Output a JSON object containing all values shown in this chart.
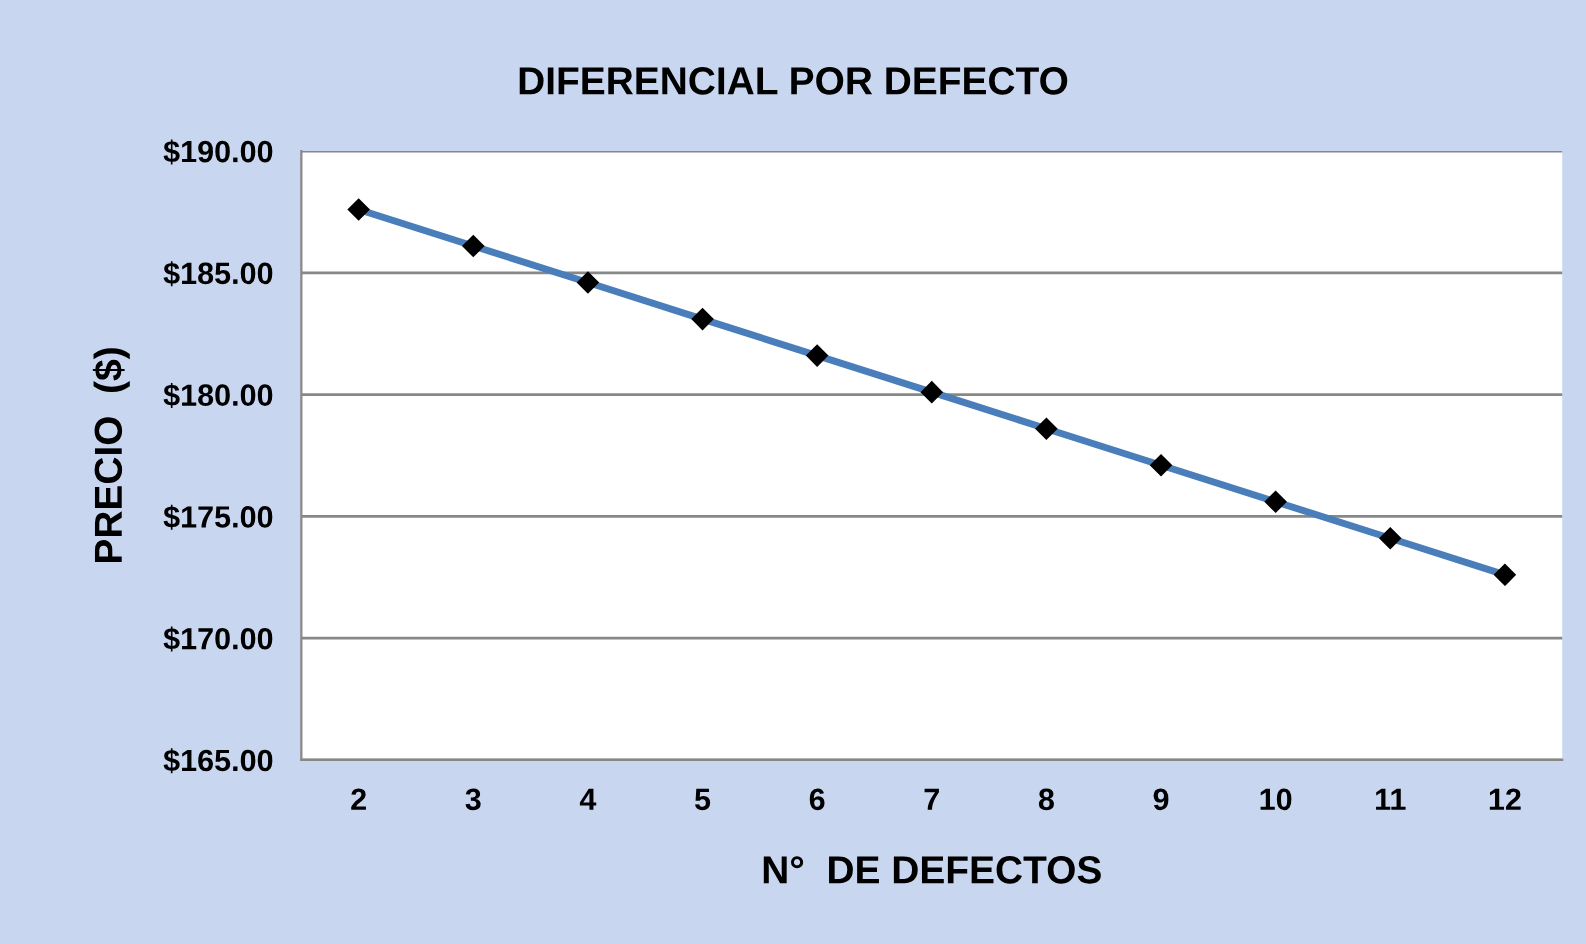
{
  "chart_data": {
    "type": "line",
    "title": "DIFERENCIAL POR DEFECTO",
    "xlabel": "N°  DE DEFECTOS",
    "ylabel": "PRECIO  ($)",
    "categories": [
      "2",
      "3",
      "4",
      "5",
      "6",
      "7",
      "8",
      "9",
      "10",
      "11",
      "12"
    ],
    "series": [
      {
        "color": "#4a7ebb",
        "values": [
          187.6,
          186.1,
          184.6,
          183.1,
          181.6,
          180.1,
          178.6,
          177.1,
          175.6,
          174.1,
          172.6
        ]
      }
    ],
    "ylim": [
      165,
      190
    ],
    "yticks": [
      {
        "value": 165,
        "label": "$165.00"
      },
      {
        "value": 170,
        "label": "$170.00"
      },
      {
        "value": 175,
        "label": "$175.00"
      },
      {
        "value": 180,
        "label": "$180.00"
      },
      {
        "value": 185,
        "label": "$185.00"
      },
      {
        "value": 190,
        "label": "$190.00"
      }
    ],
    "grid": "y",
    "marker": "diamond",
    "line_style": "solid"
  }
}
